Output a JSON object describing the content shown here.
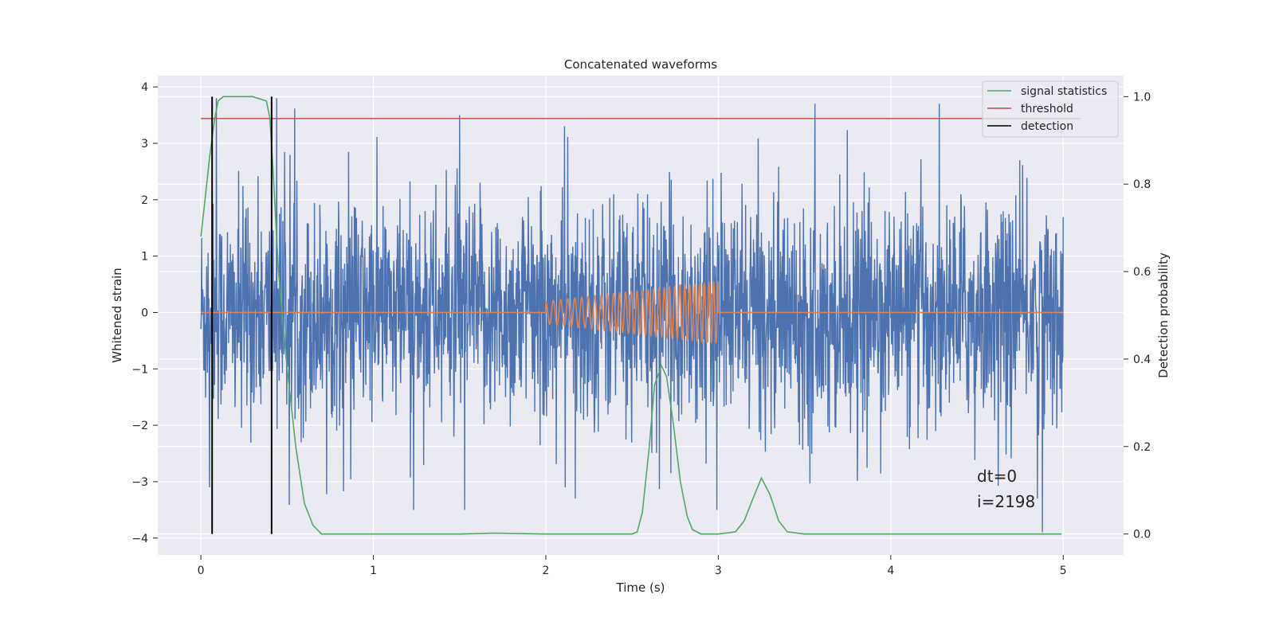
{
  "chart_data": {
    "type": "line",
    "title": "Concatenated waveforms",
    "xlabel": "Time (s)",
    "ylabel": "Whitened strain",
    "ylabel_right": "Detection probability",
    "xlim": [
      -0.25,
      5.35
    ],
    "ylim": [
      -4.3,
      4.2
    ],
    "ylim_right": [
      -0.048,
      1.048
    ],
    "x_ticks": [
      0,
      1,
      2,
      3,
      4,
      5
    ],
    "y_ticks": [
      -4,
      -3,
      -2,
      -1,
      0,
      1,
      2,
      3,
      4
    ],
    "y_ticks_right": [
      0.0,
      0.2,
      0.4,
      0.6,
      0.8,
      1.0
    ],
    "x_tick_labels": [
      "0",
      "1",
      "2",
      "3",
      "4",
      "5"
    ],
    "y_tick_labels": [
      "−4",
      "−3",
      "−2",
      "−1",
      "0",
      "1",
      "2",
      "3",
      "4"
    ],
    "y_tick_labels_right": [
      "0.0",
      "0.2",
      "0.4",
      "0.6",
      "0.8",
      "1.0"
    ],
    "grid": true,
    "legend_position": "top-right",
    "legend": [
      "signal statistics",
      "threshold",
      "detection"
    ],
    "colors": {
      "strain": "#4c72b0",
      "template": "#dd8452",
      "signal_statistics": "#55a868",
      "threshold": "#c44e52",
      "detection": "#000000",
      "plot_bg": "#eaeaf2",
      "grid": "#ffffff"
    },
    "noise_series": {
      "axis": "left",
      "x_range": [
        0,
        5
      ],
      "approx_envelope": [
        -3.5,
        3.7
      ],
      "notable_spikes": [
        {
          "x": 0.05,
          "y": -3.1
        },
        {
          "x": 0.09,
          "y": 3.8
        },
        {
          "x": 0.44,
          "y": 3.8
        },
        {
          "x": 1.5,
          "y": 3.5
        },
        {
          "x": 1.53,
          "y": -3.5
        },
        {
          "x": 2.17,
          "y": -3.3
        },
        {
          "x": 3.56,
          "y": 3.7
        },
        {
          "x": 4.88,
          "y": -3.9
        },
        {
          "x": 4.85,
          "y": -3.3
        }
      ]
    },
    "template_series": {
      "axis": "left",
      "zero_until": 2.0,
      "chirp_start": 2.0,
      "chirp_end": 3.0,
      "start_amplitude": 0.2,
      "end_amplitude": 0.55,
      "cycles": 30,
      "x_end": 5.0
    },
    "signal_statistics": {
      "axis": "right",
      "x": [
        0.0,
        0.02,
        0.05,
        0.08,
        0.1,
        0.13,
        0.16,
        0.2,
        0.3,
        0.38,
        0.4,
        0.42,
        0.45,
        0.5,
        0.55,
        0.6,
        0.65,
        0.7,
        1.0,
        1.5,
        1.7,
        2.0,
        2.5,
        2.53,
        2.56,
        2.6,
        2.63,
        2.67,
        2.7,
        2.74,
        2.78,
        2.82,
        2.85,
        2.9,
        3.0,
        3.1,
        3.15,
        3.2,
        3.25,
        3.3,
        3.35,
        3.4,
        3.5,
        4.0,
        4.5,
        4.99
      ],
      "y": [
        0.68,
        0.75,
        0.86,
        0.95,
        0.99,
        1.0,
        1.0,
        1.0,
        1.0,
        0.99,
        0.95,
        0.82,
        0.6,
        0.38,
        0.2,
        0.07,
        0.02,
        0.0,
        0.0,
        0.0,
        0.002,
        0.0,
        0.0,
        0.005,
        0.05,
        0.2,
        0.34,
        0.385,
        0.36,
        0.25,
        0.12,
        0.04,
        0.01,
        0.0,
        0.0,
        0.005,
        0.03,
        0.08,
        0.128,
        0.09,
        0.03,
        0.005,
        0.0,
        0.0,
        0.0,
        0.0
      ]
    },
    "threshold": {
      "axis": "right",
      "value": 0.95,
      "x_range": [
        0,
        5.1
      ]
    },
    "detections": [
      0.065,
      0.41
    ],
    "annotations": [
      "dt=0",
      "i=2198"
    ]
  }
}
